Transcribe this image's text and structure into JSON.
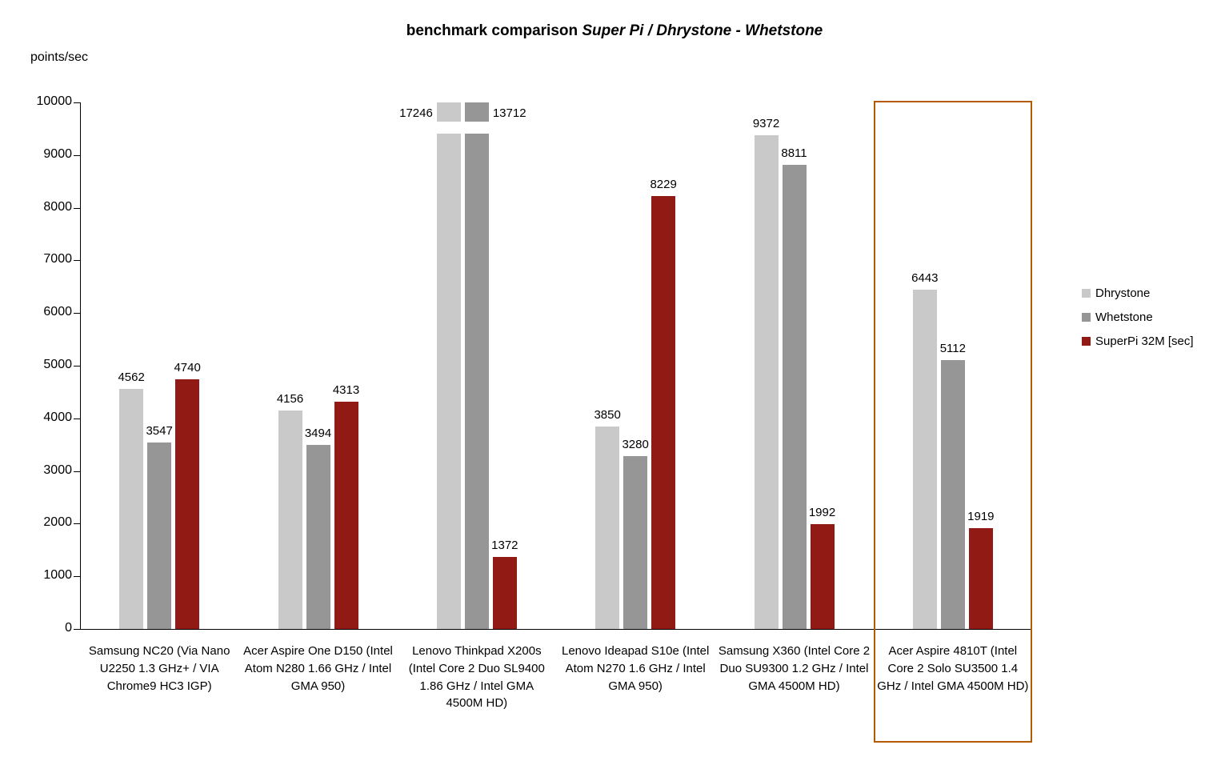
{
  "title": {
    "prefix": "benchmark comparison ",
    "italic": "Super Pi / Dhrystone - Whetstone"
  },
  "axis_label": "points/sec",
  "chart_data": {
    "type": "bar",
    "title": "benchmark comparison Super Pi / Dhrystone - Whetstone",
    "xlabel": "",
    "ylabel": "points/sec",
    "ylim": [
      0,
      10000
    ],
    "ytick_step": 1000,
    "grid": false,
    "legend_position": "right",
    "categories": [
      "Samsung NC20 (Via Nano U2250 1.3 GHz+ /  VIA Chrome9 HC3 IGP)",
      "Acer Aspire One D150 (Intel Atom N280 1.66 GHz / Intel GMA 950)",
      "Lenovo Thinkpad X200s (Intel Core 2 Duo SL9400 1.86 GHz / Intel GMA 4500M HD)",
      "Lenovo Ideapad S10e (Intel Atom N270 1.6 GHz / Intel GMA 950)",
      "Samsung X360 (Intel Core 2 Duo SU9300 1.2 GHz / Intel GMA 4500M HD)",
      "Acer Aspire 4810T (Intel Core 2 Solo SU3500 1.4 GHz / Intel GMA 4500M HD)"
    ],
    "series": [
      {
        "name": "Dhrystone",
        "color": "#c9c9c9",
        "values": [
          4562,
          4156,
          17246,
          3850,
          9372,
          6443
        ]
      },
      {
        "name": "Whetstone",
        "color": "#969696",
        "values": [
          3547,
          3494,
          13712,
          3280,
          8811,
          5112
        ]
      },
      {
        "name": "SuperPi 32M [sec]",
        "color": "#911a14",
        "values": [
          4740,
          4313,
          1372,
          8229,
          1992,
          1919
        ]
      }
    ],
    "highlight": {
      "group_index": 5,
      "border_color": "#b35a00"
    }
  }
}
